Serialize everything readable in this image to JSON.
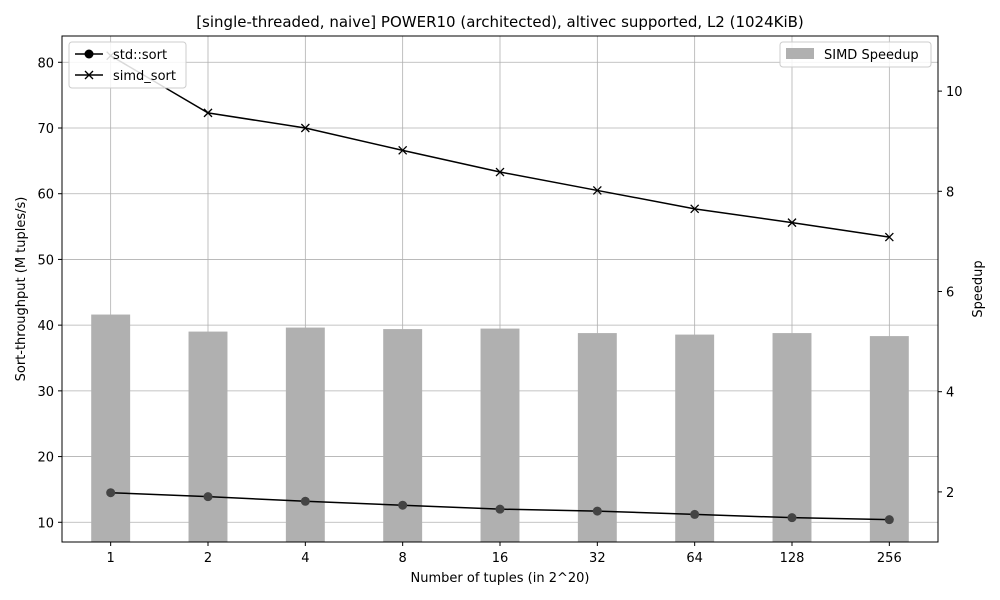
{
  "chart_data": {
    "type": "bar+line",
    "title": "[single-threaded, naive] POWER10 (architected), altivec supported, L2 (1024KiB)",
    "xlabel": "Number of tuples (in 2^20)",
    "ylabel": "Sort-throughput (M tuples/s)",
    "y2label": "Speedup",
    "categories": [
      "1",
      "2",
      "4",
      "8",
      "16",
      "32",
      "64",
      "128",
      "256"
    ],
    "ylim": [
      7,
      84
    ],
    "y2lim": [
      1.0,
      11.1
    ],
    "yticks": [
      10,
      20,
      30,
      40,
      50,
      60,
      70,
      80
    ],
    "y2ticks": [
      2,
      4,
      6,
      8,
      10
    ],
    "grid": true,
    "legend_left_placement": "top-left",
    "legend_right_placement": "top-right",
    "series": [
      {
        "name": "std::sort",
        "axis": "left",
        "kind": "line",
        "marker": "circle",
        "color": "#000000",
        "marker_color": "#444444",
        "values": [
          14.5,
          13.9,
          13.2,
          12.6,
          12.0,
          11.7,
          11.2,
          10.7,
          10.4
        ]
      },
      {
        "name": "simd_sort",
        "axis": "left",
        "kind": "line",
        "marker": "x",
        "color": "#000000",
        "values": [
          81.0,
          72.3,
          70.0,
          66.6,
          63.3,
          60.5,
          57.7,
          55.6,
          53.4
        ]
      },
      {
        "name": "SIMD Speedup",
        "axis": "right",
        "kind": "bar",
        "color": "#b0b0b0",
        "values": [
          5.54,
          5.2,
          5.28,
          5.25,
          5.26,
          5.17,
          5.14,
          5.17,
          5.11
        ]
      }
    ]
  }
}
